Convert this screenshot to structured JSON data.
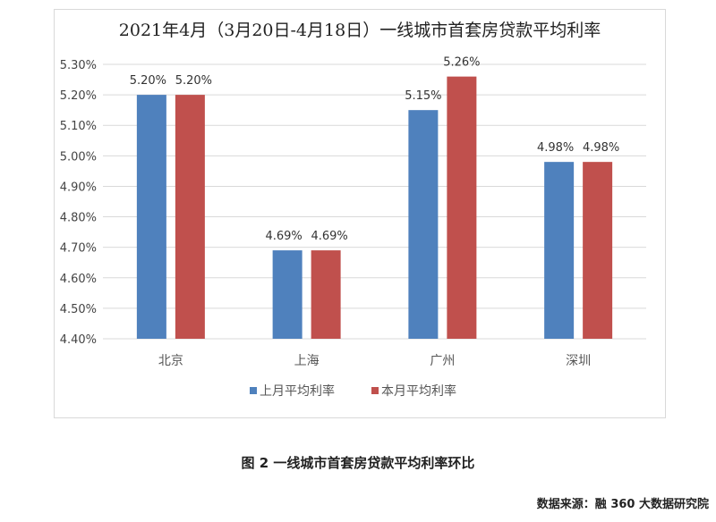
{
  "chart_data": {
    "type": "bar",
    "title": "2021年4月（3月20日-4月18日）一线城市首套房贷款平均利率",
    "categories": [
      "北京",
      "上海",
      "广州",
      "深圳"
    ],
    "series": [
      {
        "name": "上月平均利率",
        "values": [
          5.2,
          4.69,
          5.15,
          4.98
        ],
        "labels": [
          "5.20%",
          "4.69%",
          "5.15%",
          "4.98%"
        ],
        "color": "#4f81bd"
      },
      {
        "name": "本月平均利率",
        "values": [
          5.2,
          4.69,
          5.26,
          4.98
        ],
        "labels": [
          "5.20%",
          "4.69%",
          "5.26%",
          "4.98%"
        ],
        "color": "#c0504d"
      }
    ],
    "ylim": [
      4.4,
      5.3
    ],
    "yticks": [
      "4.40%",
      "4.50%",
      "4.60%",
      "4.70%",
      "4.80%",
      "4.90%",
      "5.00%",
      "5.10%",
      "5.20%",
      "5.30%"
    ],
    "grid": true,
    "legend": "bottom",
    "xlabel": "",
    "ylabel": ""
  },
  "caption": "图 2  一线城市首套房贷款平均利率环比",
  "source": "数据来源：融 360 大数据研究院"
}
